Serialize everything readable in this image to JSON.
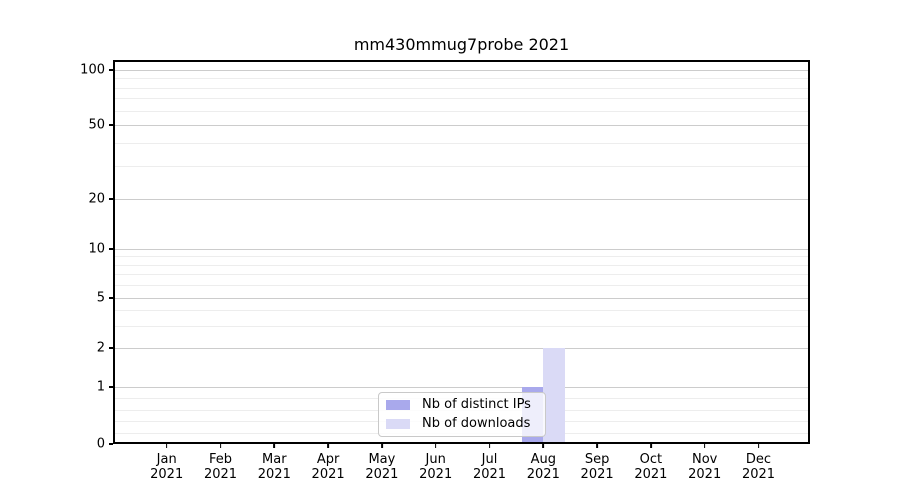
{
  "figure": {
    "title": "mm430mmug7probe 2021"
  },
  "legend": {
    "items": [
      {
        "label": "Nb of distinct IPs",
        "color": "#a9a9ec"
      },
      {
        "label": "Nb of downloads",
        "color": "#dadaf6"
      }
    ]
  },
  "chart_data": {
    "type": "bar",
    "title": "mm430mmug7probe 2021",
    "categories": [
      "Jan",
      "Feb",
      "Mar",
      "Apr",
      "May",
      "Jun",
      "Jul",
      "Aug",
      "Sep",
      "Oct",
      "Nov",
      "Dec"
    ],
    "year": "2021",
    "series": [
      {
        "name": "Nb of distinct IPs",
        "color": "#a9a9ec",
        "values": [
          0,
          0,
          0,
          0,
          0,
          0,
          0,
          1,
          0,
          0,
          0,
          0
        ]
      },
      {
        "name": "Nb of downloads",
        "color": "#dadaf6",
        "values": [
          0,
          0,
          0,
          0,
          0,
          0,
          0,
          2,
          0,
          0,
          0,
          0
        ]
      }
    ],
    "y_axis": {
      "scale": "symlog",
      "ticks": [
        0,
        1,
        2,
        5,
        10,
        20,
        50,
        100
      ],
      "minor_ticks": [
        0.2,
        0.4,
        0.6,
        0.8,
        3,
        4,
        6,
        7,
        8,
        9,
        30,
        40,
        60,
        70,
        80,
        90
      ],
      "range": [
        0,
        113
      ]
    },
    "xlabel": "",
    "ylabel": "",
    "grid": true,
    "legend_position": "lower-center"
  }
}
